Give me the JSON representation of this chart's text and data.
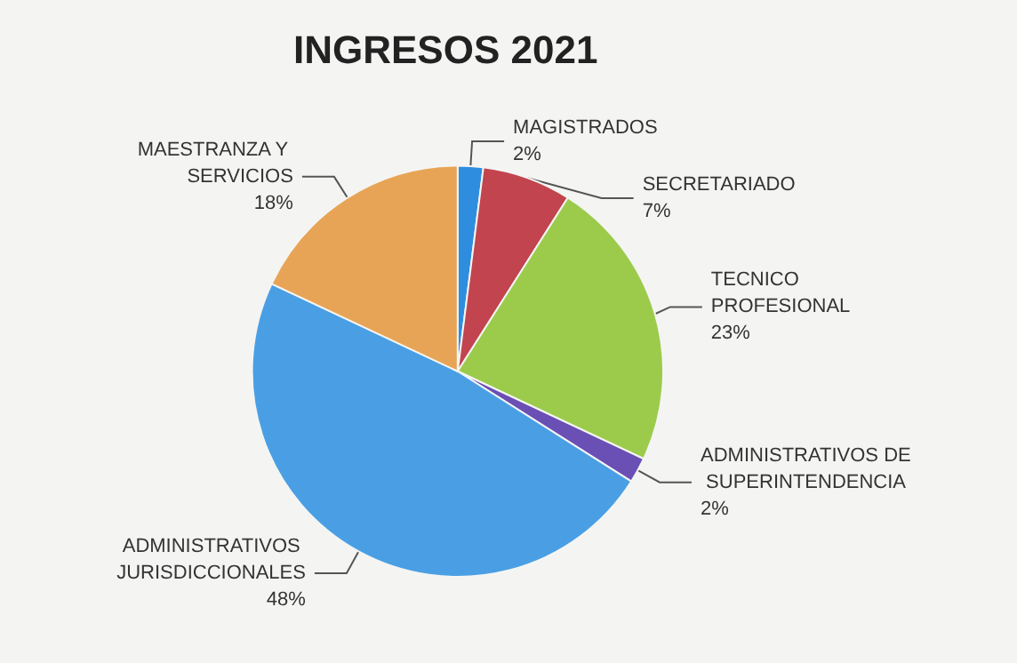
{
  "chart_data": {
    "type": "pie",
    "title": "INGRESOS 2021",
    "categories": [
      "MAGISTRADOS",
      "SECRETARIADO",
      "TECNICO PROFESIONAL",
      "ADMINISTRATIVOS DE SUPERINTENDENCIA",
      "ADMINISTRATIVOS JURISDICCIONALES",
      "MAESTRANZA Y SERVICIOS"
    ],
    "values": [
      2,
      7,
      23,
      2,
      48,
      18
    ],
    "value_labels": [
      "2%",
      "7%",
      "23%",
      "2%",
      "48%",
      "18%"
    ],
    "colors": [
      "#2f8de0",
      "#c2444e",
      "#9ccb4c",
      "#6a4fb4",
      "#4a9fe4",
      "#e8a456"
    ],
    "legend": false
  }
}
